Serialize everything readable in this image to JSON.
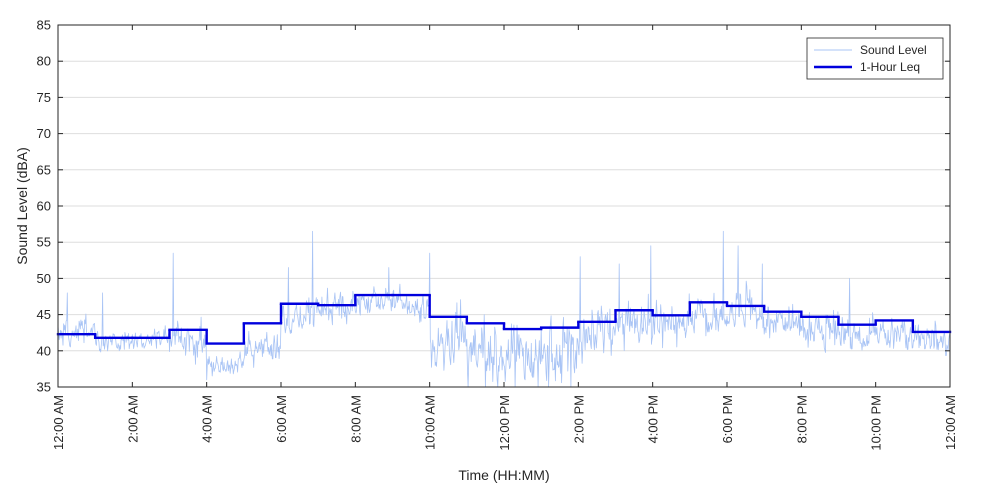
{
  "chart_data": {
    "type": "line",
    "xlabel": "Time (HH:MM)",
    "ylabel": "Sound Level (dBA)",
    "xlim": [
      0,
      24
    ],
    "ylim": [
      35,
      85
    ],
    "yticks": [
      35,
      40,
      45,
      50,
      55,
      60,
      65,
      70,
      75,
      80,
      85
    ],
    "xticks": [
      0,
      2,
      4,
      6,
      8,
      10,
      12,
      14,
      16,
      18,
      20,
      22,
      24
    ],
    "xtick_labels": [
      "12:00 AM",
      "2:00 AM",
      "4:00 AM",
      "6:00 AM",
      "8:00 AM",
      "10:00 AM",
      "12:00 PM",
      "2:00 PM",
      "4:00 PM",
      "6:00 PM",
      "8:00 PM",
      "10:00 PM",
      "12:00 AM"
    ],
    "grid": "horizontal",
    "legend_position": "top-right",
    "series": [
      {
        "name": "Sound Level",
        "color": "#a9c4f5",
        "style": "thin",
        "hourly_typical": [
          42.5,
          41.5,
          41.5,
          42.0,
          37.5,
          39.5,
          44.5,
          46.0,
          46.5,
          47.0,
          41.5,
          40.0,
          39.5,
          40.0,
          42.0,
          43.5,
          43.5,
          45.0,
          45.0,
          44.0,
          43.0,
          42.0,
          42.5,
          41.5
        ],
        "hourly_spread": [
          2.0,
          1.5,
          1.5,
          2.5,
          1.5,
          2.0,
          2.5,
          2.5,
          2.0,
          2.0,
          4.0,
          4.5,
          4.5,
          4.5,
          3.5,
          3.0,
          3.0,
          3.0,
          2.5,
          2.5,
          2.5,
          2.5,
          2.0,
          2.0
        ],
        "peaks": [
          {
            "x": 0.25,
            "y": 48.0
          },
          {
            "x": 1.2,
            "y": 48.0
          },
          {
            "x": 3.1,
            "y": 53.5
          },
          {
            "x": 6.2,
            "y": 51.5
          },
          {
            "x": 6.85,
            "y": 56.5
          },
          {
            "x": 8.9,
            "y": 51.5
          },
          {
            "x": 10.0,
            "y": 53.5
          },
          {
            "x": 13.2,
            "y": 52.5
          },
          {
            "x": 14.05,
            "y": 53.0
          },
          {
            "x": 15.1,
            "y": 52.0
          },
          {
            "x": 15.95,
            "y": 54.5
          },
          {
            "x": 17.9,
            "y": 56.5
          },
          {
            "x": 18.3,
            "y": 54.5
          },
          {
            "x": 18.95,
            "y": 52.0
          },
          {
            "x": 21.3,
            "y": 50.0
          }
        ],
        "troughs": [
          {
            "x": 4.0,
            "y": 36.0
          },
          {
            "x": 11.5,
            "y": 35.0
          },
          {
            "x": 12.3,
            "y": 35.0
          },
          {
            "x": 13.2,
            "y": 35.0
          },
          {
            "x": 13.8,
            "y": 35.0
          }
        ]
      },
      {
        "name": "1-Hour Leq",
        "color": "#0000dd",
        "style": "step",
        "hours": [
          0,
          1,
          2,
          3,
          4,
          5,
          6,
          7,
          8,
          9,
          10,
          11,
          12,
          13,
          14,
          15,
          16,
          17,
          18,
          19,
          20,
          21,
          22,
          23
        ],
        "values": [
          42.3,
          41.8,
          41.8,
          42.9,
          41.0,
          43.8,
          46.5,
          46.3,
          47.7,
          47.7,
          44.7,
          43.8,
          43.0,
          43.2,
          44.0,
          45.6,
          44.9,
          46.7,
          46.2,
          45.4,
          44.7,
          43.6,
          44.2,
          42.6
        ]
      }
    ]
  }
}
